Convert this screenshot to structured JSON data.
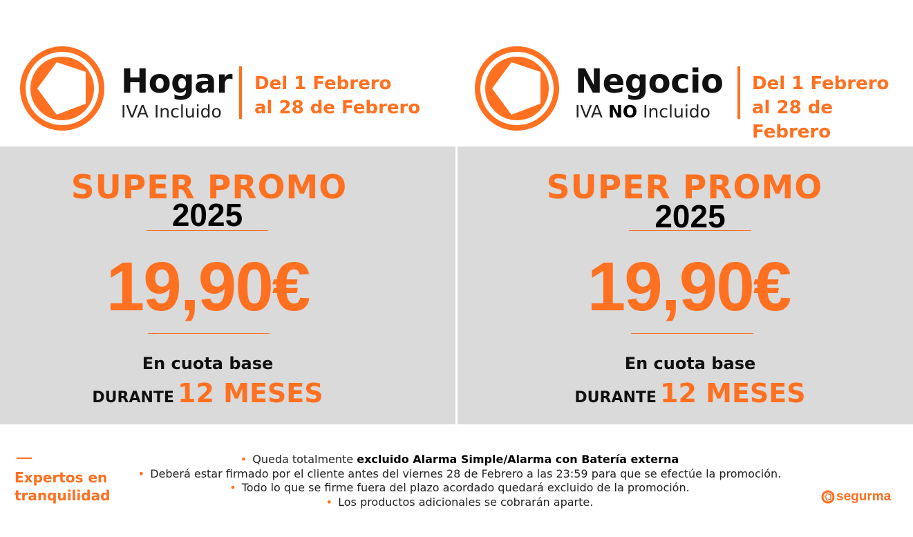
{
  "colors": {
    "accent": "#FF7020",
    "panel_bg": "#DADADA",
    "text_dark": "#111111"
  },
  "hogar": {
    "title": "Hogar",
    "subtitle": "IVA Incluido",
    "dates_line1": "Del 1 Febrero",
    "dates_line2": "al 28 de Febrero",
    "promo": "SUPER PROMO",
    "year": "2025",
    "price": "19,90€",
    "cuota": "En cuota base",
    "durante": "DURANTE",
    "meses": "12 MESES"
  },
  "negocio": {
    "title": "Negocio",
    "subtitle_pre": "IVA",
    "subtitle_bold": "NO",
    "subtitle_post": "Incluido",
    "dates_line1": "Del 1 Febrero",
    "dates_line2": "al 28 de Febrero",
    "promo": "SUPER PROMO",
    "year": "2025",
    "price": "19,90€",
    "cuota": "En cuota base",
    "durante": "DURANTE",
    "meses": "12 MESES"
  },
  "footer": {
    "tagline_line1": "Expertos en",
    "tagline_line2": "tranquilidad",
    "notes": [
      {
        "pre": "Queda totalmente",
        "bold": "excluido Alarma Simple/Alarma con Batería externa"
      },
      {
        "pre": "Deberá estar firmado por el cliente antes del viernes 28 de Febrero a las 23:59 para que se efectúe la promoción."
      },
      {
        "pre": "Todo lo que se firme fuera del plazo acordado quedará excluido de la promoción."
      },
      {
        "pre": "Los productos adicionales se cobrarán aparte."
      }
    ],
    "bullet": "•",
    "brand": "segurma",
    "brand_icon": "segurma-ring-logo-icon"
  }
}
